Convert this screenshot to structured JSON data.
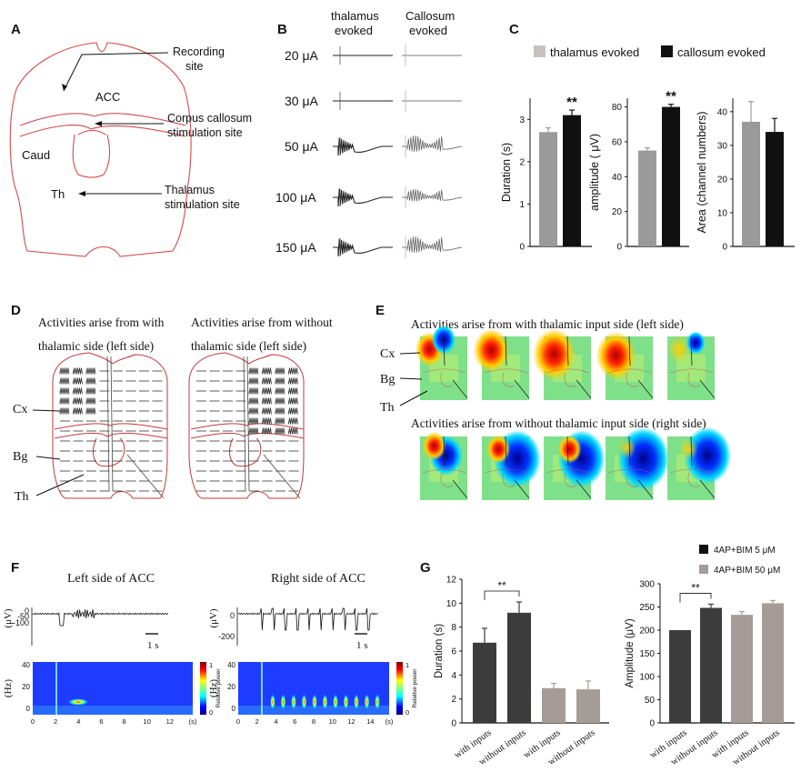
{
  "panels": {
    "A": {
      "label": "A",
      "recording_site": [
        "Recording",
        "site"
      ],
      "acc": "ACC",
      "corpus_callosum": [
        "Corpus callosum",
        "stimulation site"
      ],
      "caud": "Caud",
      "th": "Th",
      "thalamus_stim": [
        "Thalamus",
        "stimulation site"
      ]
    },
    "B": {
      "label": "B",
      "col1": [
        "thalamus",
        "evoked"
      ],
      "col2": [
        "Callosum",
        "evoked"
      ],
      "rows": [
        "20  μA",
        "30  μA",
        "50  μA",
        "100  μA",
        "150  μA"
      ]
    },
    "C": {
      "label": "C",
      "legend": [
        "thalamus evoked",
        "callosum evoked"
      ]
    },
    "D": {
      "label": "D",
      "title_left": [
        "Activities arise from with",
        "thalamic side (left side)"
      ],
      "title_right": [
        "Activities arise from without",
        "thalamic side (left side)"
      ],
      "cx": "Cx",
      "bg": "Bg",
      "th": "Th"
    },
    "E": {
      "label": "E",
      "title_top": "Activities arise from with thalamic input side (left side)",
      "title_bottom": "Activities arise from without thalamic input side (right side)",
      "cx": "Cx",
      "bg": "Bg",
      "th": "Th"
    },
    "F": {
      "label": "F",
      "left_title": "Left side of ACC",
      "right_title": "Right side of ACC",
      "uv": "(μV)",
      "hz": "(Hz)",
      "scale": "1 s",
      "relpower": "Relative power",
      "left_yticks": [
        "0",
        "-50",
        "-100"
      ],
      "right_yticks": [
        "0",
        "-200"
      ],
      "freq_ticks": [
        "40",
        "20",
        "0"
      ],
      "left_xticks": [
        "0",
        "2",
        "4",
        "6",
        "8",
        "10",
        "12",
        "(s)"
      ],
      "right_xticks": [
        "0",
        "2",
        "4",
        "6",
        "8",
        "10",
        "12",
        "14",
        "(s)"
      ],
      "cbar_ticks": [
        "1",
        "0"
      ]
    },
    "G": {
      "label": "G",
      "legend": [
        "4AP+BIM 5 μM",
        "4AP+BIM 50 μM"
      ]
    }
  },
  "colors": {
    "red_outline": "#d24a4a",
    "grey_bar": "#9a9a9a",
    "black_bar": "#111111",
    "dark_bar": "#3c3c3c",
    "taupe_bar": "#a59c98"
  },
  "chart_data": [
    {
      "id": "C-duration",
      "type": "bar",
      "title": "",
      "xlabel": "",
      "ylabel": "Duration (s)",
      "categories": [
        "thalamus evoked",
        "callosum evoked"
      ],
      "values": [
        2.7,
        3.1
      ],
      "errors": [
        0.1,
        0.12
      ],
      "ylim": [
        0,
        3.5
      ],
      "yticks": [
        "0",
        "1",
        "2",
        "3"
      ],
      "annotation": "**",
      "colors": [
        "#9a9a9a",
        "#111111"
      ]
    },
    {
      "id": "C-amplitude",
      "type": "bar",
      "title": "",
      "xlabel": "",
      "ylabel": "amplitude ( μV)",
      "categories": [
        "thalamus evoked",
        "callosum evoked"
      ],
      "values": [
        55,
        80
      ],
      "errors": [
        1.5,
        1.5
      ],
      "ylim": [
        0,
        85
      ],
      "yticks": [
        "0",
        "20",
        "40",
        "60",
        "80"
      ],
      "annotation": "**",
      "colors": [
        "#9a9a9a",
        "#111111"
      ]
    },
    {
      "id": "C-area",
      "type": "bar",
      "title": "",
      "xlabel": "",
      "ylabel": "Area (channel numbers)",
      "categories": [
        "thalamus evoked",
        "callosum evoked"
      ],
      "values": [
        37,
        34
      ],
      "errors": [
        6,
        4
      ],
      "ylim": [
        0,
        44
      ],
      "yticks": [
        "0",
        "10",
        "20",
        "30",
        "40"
      ],
      "annotation": "",
      "colors": [
        "#9a9a9a",
        "#111111"
      ]
    },
    {
      "id": "G-duration",
      "type": "bar",
      "title": "",
      "xlabel": "",
      "ylabel": "Duration (s)",
      "categories": [
        "with inputs",
        "without inputs",
        "with inputs",
        "without inputs"
      ],
      "values": [
        6.7,
        9.2,
        2.9,
        2.8
      ],
      "errors": [
        1.2,
        0.9,
        0.4,
        0.7
      ],
      "ylim": [
        0,
        12
      ],
      "yticks": [
        "0",
        "2",
        "4",
        "6",
        "8",
        "10",
        "12"
      ],
      "annotation": "**",
      "colors": [
        "#3c3c3c",
        "#3c3c3c",
        "#a59c98",
        "#a59c98"
      ]
    },
    {
      "id": "G-amplitude",
      "type": "bar",
      "title": "",
      "xlabel": "",
      "ylabel": "Amplitude (μV)",
      "categories": [
        "with inputs",
        "without inputs",
        "with inputs",
        "without inputs"
      ],
      "values": [
        200,
        248,
        233,
        258
      ],
      "errors": [
        0,
        8,
        7,
        6
      ],
      "ylim": [
        0,
        300
      ],
      "yticks": [
        "0",
        "50",
        "100",
        "150",
        "200",
        "250",
        "300"
      ],
      "annotation": "**",
      "colors": [
        "#3c3c3c",
        "#3c3c3c",
        "#a59c98",
        "#a59c98"
      ]
    }
  ]
}
